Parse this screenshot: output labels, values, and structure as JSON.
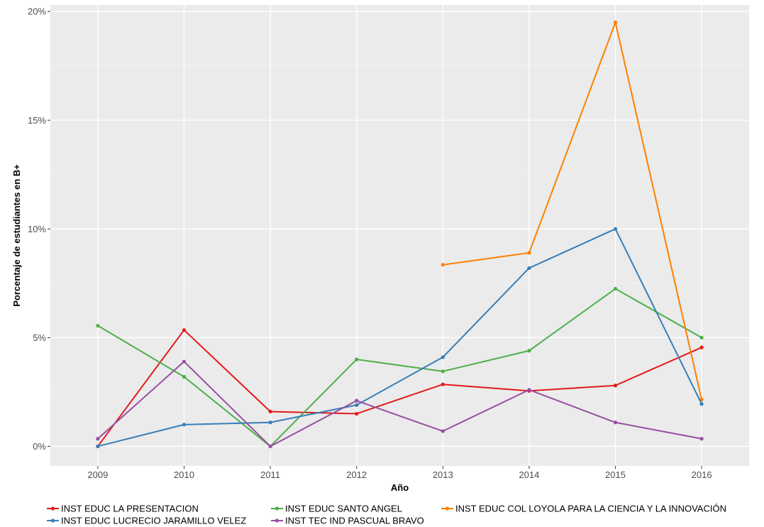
{
  "chart_data": {
    "type": "line",
    "title": "",
    "xlabel": "Año",
    "ylabel": "Porcentaje de estudiantes en B+",
    "x": [
      2009,
      2010,
      2011,
      2012,
      2013,
      2014,
      2015,
      2016
    ],
    "xlim": [
      2008.45,
      2016.55
    ],
    "ylim": [
      -0.9,
      20.3
    ],
    "yticks": [
      0,
      5,
      10,
      15,
      20
    ],
    "ytick_labels": [
      "0%",
      "5%",
      "10%",
      "15%",
      "20%"
    ],
    "grid": true,
    "legend_position": "bottom",
    "series": [
      {
        "name": "INST EDUC LA PRESENTACION",
        "color": "#e41a1c",
        "values": [
          0.0,
          5.35,
          1.6,
          1.5,
          2.85,
          2.55,
          2.8,
          4.55
        ]
      },
      {
        "name": "INST EDUC SANTO ANGEL",
        "color": "#4daf4a",
        "values": [
          5.55,
          3.2,
          0.0,
          4.0,
          3.45,
          4.4,
          7.25,
          5.0
        ]
      },
      {
        "name": "INST EDUC COL LOYOLA PARA LA CIENCIA Y LA INNOVACIÓN",
        "color": "#ff7f00",
        "values": [
          null,
          null,
          null,
          null,
          8.35,
          8.9,
          19.5,
          2.15
        ]
      },
      {
        "name": "INST EDUC LUCRECIO JARAMILLO VELEZ",
        "color": "#377eb8",
        "values": [
          0.0,
          1.0,
          1.1,
          1.9,
          4.1,
          8.2,
          10.0,
          1.95
        ]
      },
      {
        "name": "INST TEC IND PASCUAL BRAVO",
        "color": "#984ea3",
        "values": [
          0.35,
          3.9,
          0.0,
          2.1,
          0.7,
          2.6,
          1.1,
          0.35
        ]
      }
    ]
  }
}
